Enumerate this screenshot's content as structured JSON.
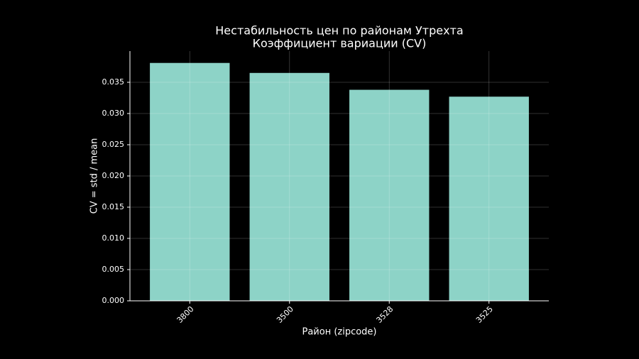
{
  "chart_data": {
    "type": "bar",
    "title": "Нестабильность цен по районам Утрехта",
    "subtitle": "Коэффициент вариации (CV)",
    "x_label": "Район (zipcode)",
    "y_label": "CV = std / mean",
    "categories": [
      "3800",
      "3500",
      "3528",
      "3525"
    ],
    "values": [
      0.0381,
      0.0365,
      0.0338,
      0.0327
    ],
    "color": "#8dd3c7",
    "ylim": [
      0,
      0.04
    ],
    "yticks": [
      {
        "value": 0,
        "label": "0.000"
      },
      {
        "value": 0.005,
        "label": "0.005"
      },
      {
        "value": 0.01,
        "label": "0.010"
      },
      {
        "value": 0.015,
        "label": "0.015"
      },
      {
        "value": 0.02,
        "label": "0.020"
      },
      {
        "value": 0.025,
        "label": "0.025"
      },
      {
        "value": 0.03,
        "label": "0.030"
      },
      {
        "value": 0.035,
        "label": "0.035"
      }
    ],
    "grid": true
  }
}
